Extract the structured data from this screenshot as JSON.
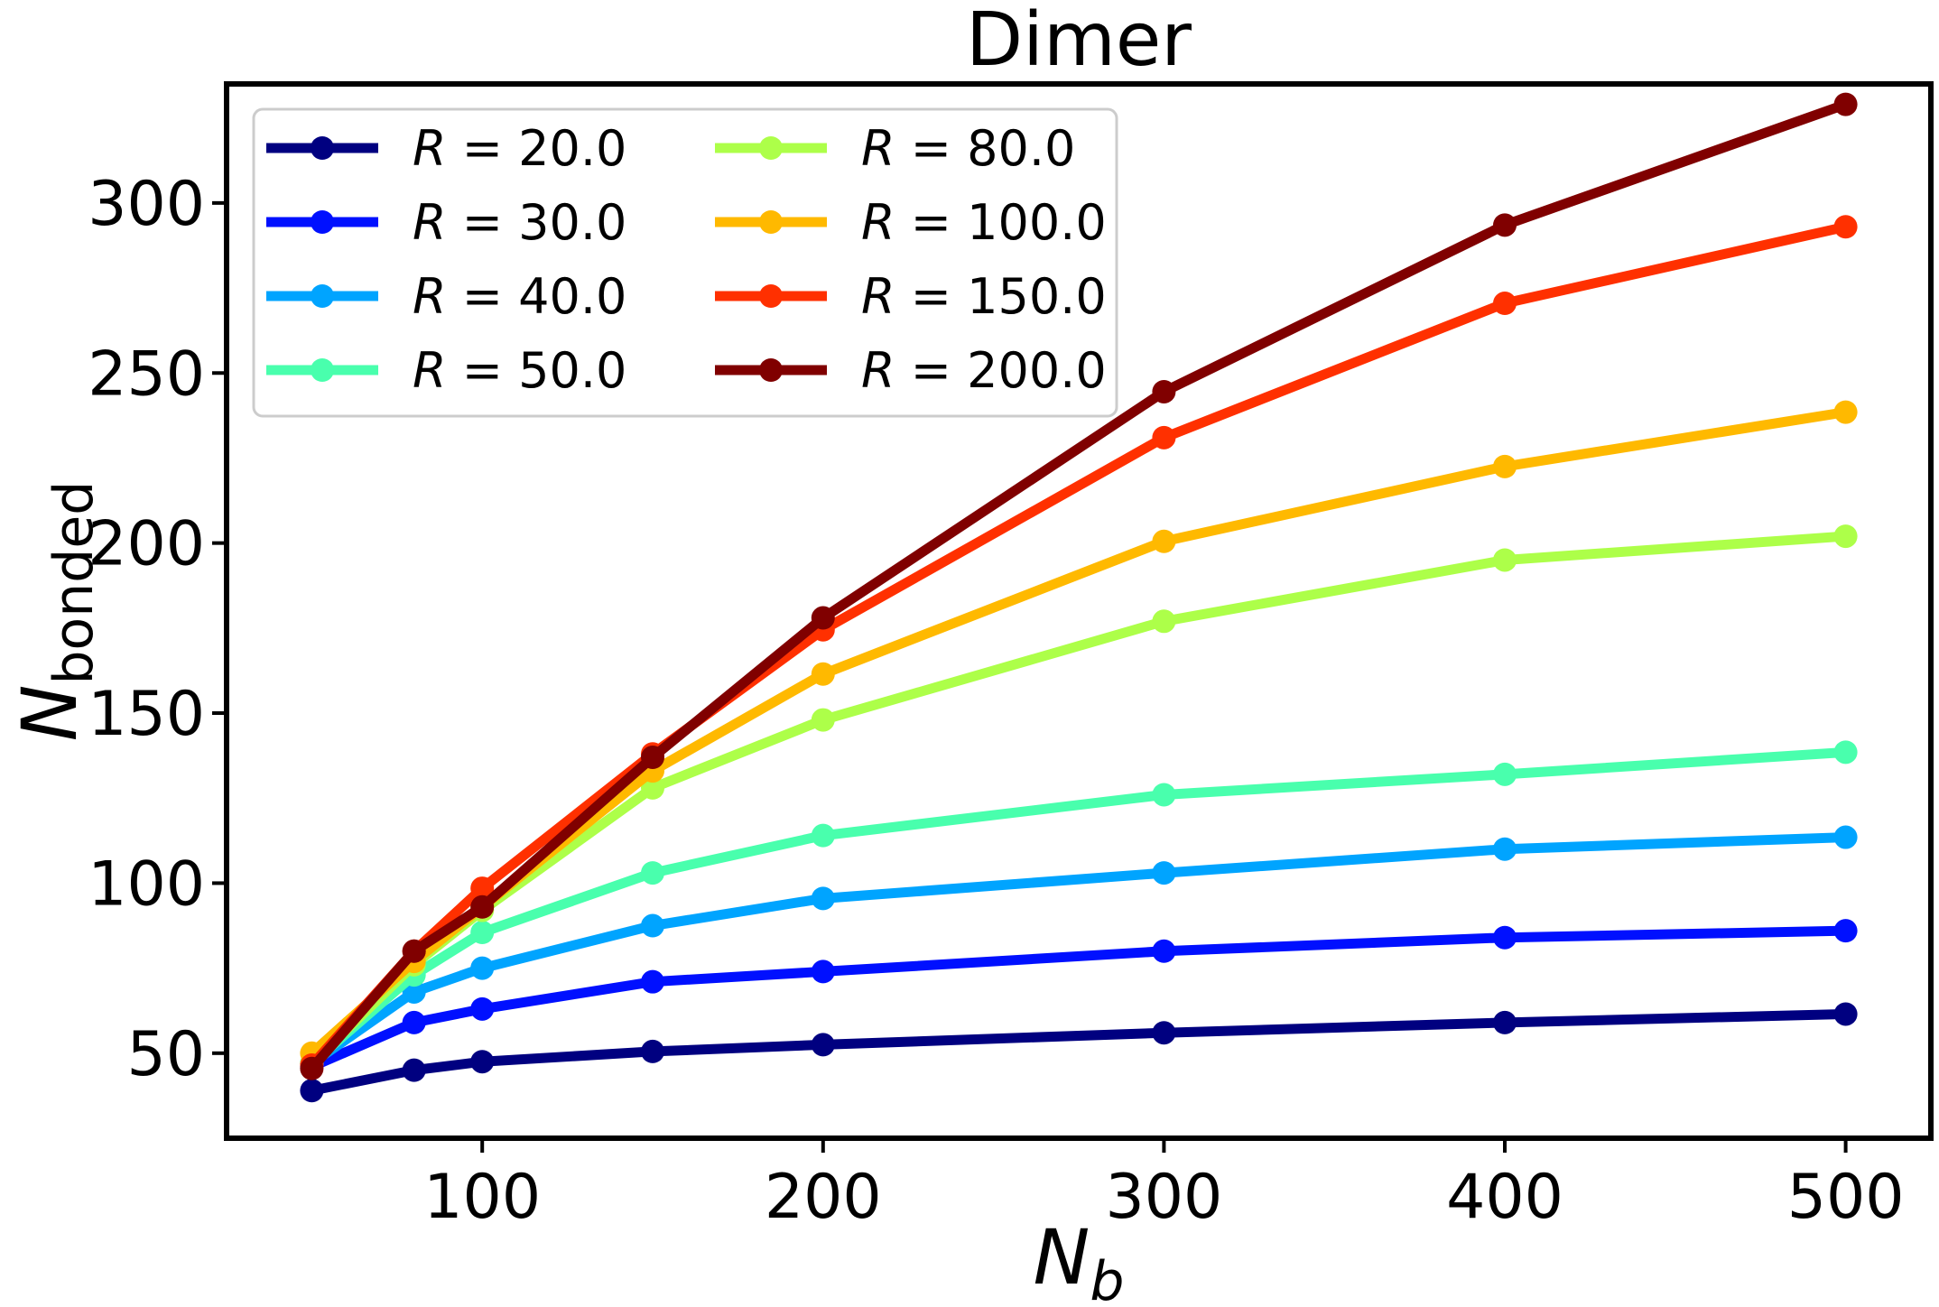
{
  "chart_data": {
    "type": "line",
    "title": "Dimer",
    "xlabel": {
      "main": "N",
      "sub": "b"
    },
    "ylabel": {
      "main": "N",
      "sub": "bonded"
    },
    "x": [
      50,
      80,
      100,
      150,
      200,
      300,
      400,
      500
    ],
    "xlim": [
      25,
      525
    ],
    "ylim": [
      25,
      335
    ],
    "xticks": [
      100,
      200,
      300,
      400,
      500
    ],
    "yticks": [
      50,
      100,
      150,
      200,
      250,
      300
    ],
    "grid": false,
    "legend_position": "top-left",
    "legend_columns": 2,
    "series": [
      {
        "name": "R = 20.0",
        "color": "#000080",
        "values": [
          39,
          45,
          47.5,
          50.5,
          52.5,
          56,
          59,
          61.5
        ]
      },
      {
        "name": "R = 30.0",
        "color": "#0010ff",
        "values": [
          46,
          59,
          63,
          71,
          74,
          80,
          84,
          86
        ]
      },
      {
        "name": "R = 40.0",
        "color": "#00a4ff",
        "values": [
          47,
          68,
          75,
          87.5,
          95.5,
          103,
          110,
          113.5
        ]
      },
      {
        "name": "R = 50.0",
        "color": "#49ffad",
        "values": [
          47,
          73,
          85.5,
          103,
          114,
          126,
          132,
          138.5
        ]
      },
      {
        "name": "R = 80.0",
        "color": "#adff49",
        "values": [
          47,
          76,
          92,
          128,
          148,
          177,
          195,
          202
        ]
      },
      {
        "name": "R = 100.0",
        "color": "#ffb900",
        "values": [
          50,
          77,
          93,
          133,
          161.5,
          200.5,
          222.5,
          238.5
        ]
      },
      {
        "name": "R = 150.0",
        "color": "#ff3000",
        "values": [
          46.5,
          80,
          98.5,
          138,
          174.5,
          231,
          270.5,
          293
        ]
      },
      {
        "name": "R = 200.0",
        "color": "#800000",
        "values": [
          45.5,
          80,
          93,
          137,
          178,
          244.5,
          293.5,
          329
        ]
      }
    ]
  }
}
